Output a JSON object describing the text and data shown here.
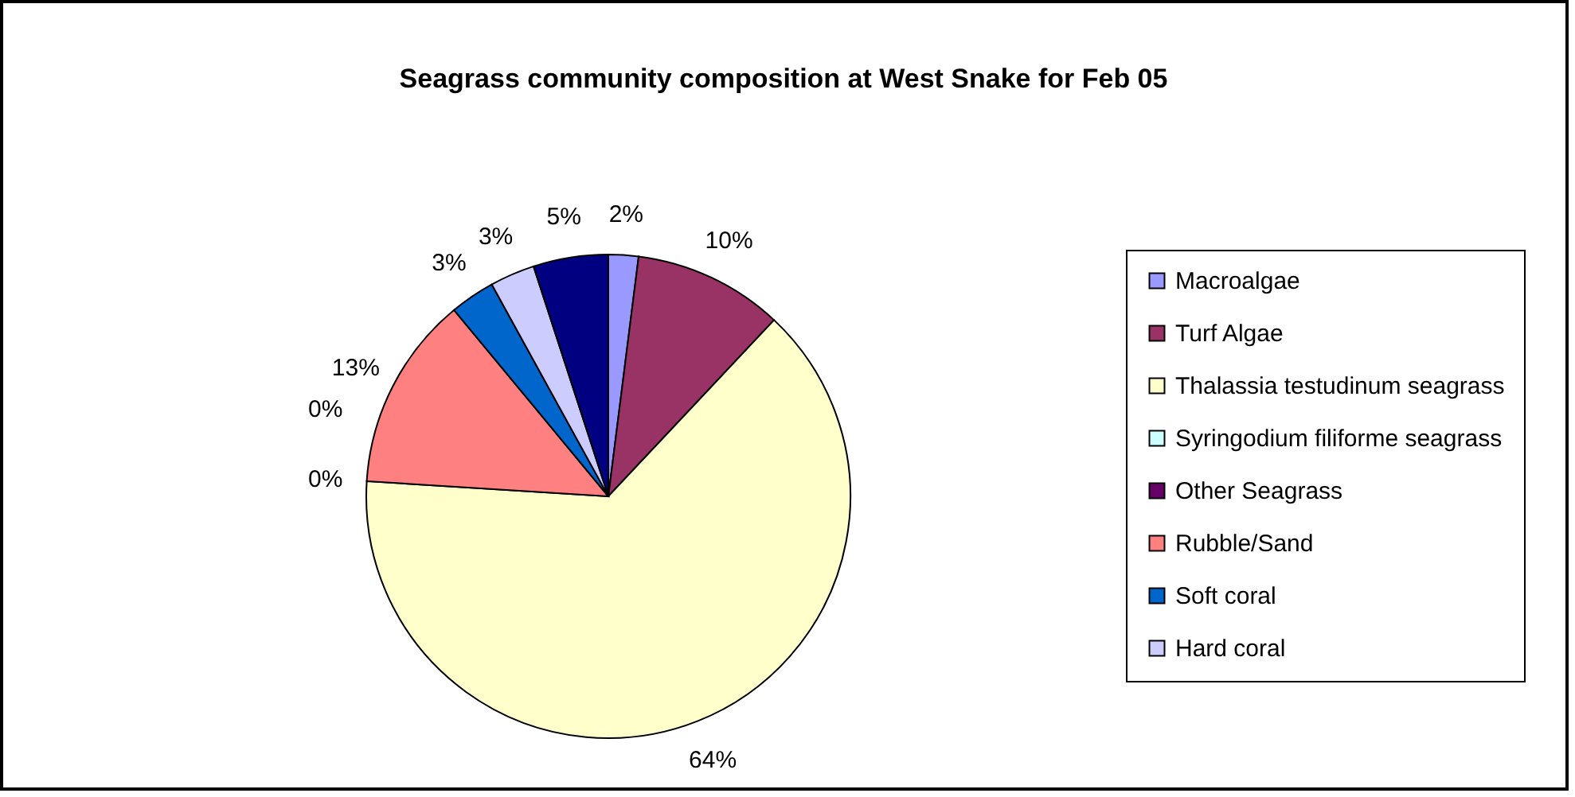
{
  "chart_data": {
    "type": "pie",
    "title": "Seagrass community composition at West Snake for Feb 05",
    "categories": [
      "Macroalgae",
      "Turf Algae",
      "Thalassia testudinum seagrass",
      "Syringodium filiforme seagrass",
      "Other Seagrass",
      "Rubble/Sand",
      "Soft coral",
      "Hard coral",
      null
    ],
    "values": [
      2,
      10,
      64,
      0,
      0,
      13,
      3,
      3,
      5
    ],
    "value_labels": [
      "2%",
      "10%",
      "64%",
      "0%",
      "0%",
      "13%",
      "3%",
      "3%",
      "5%"
    ],
    "colors": [
      "#9999ff",
      "#993366",
      "#ffffcc",
      "#ccffff",
      "#660066",
      "#ff8080",
      "#0066cc",
      "#ccccff",
      "#000080"
    ],
    "legend": "right"
  }
}
